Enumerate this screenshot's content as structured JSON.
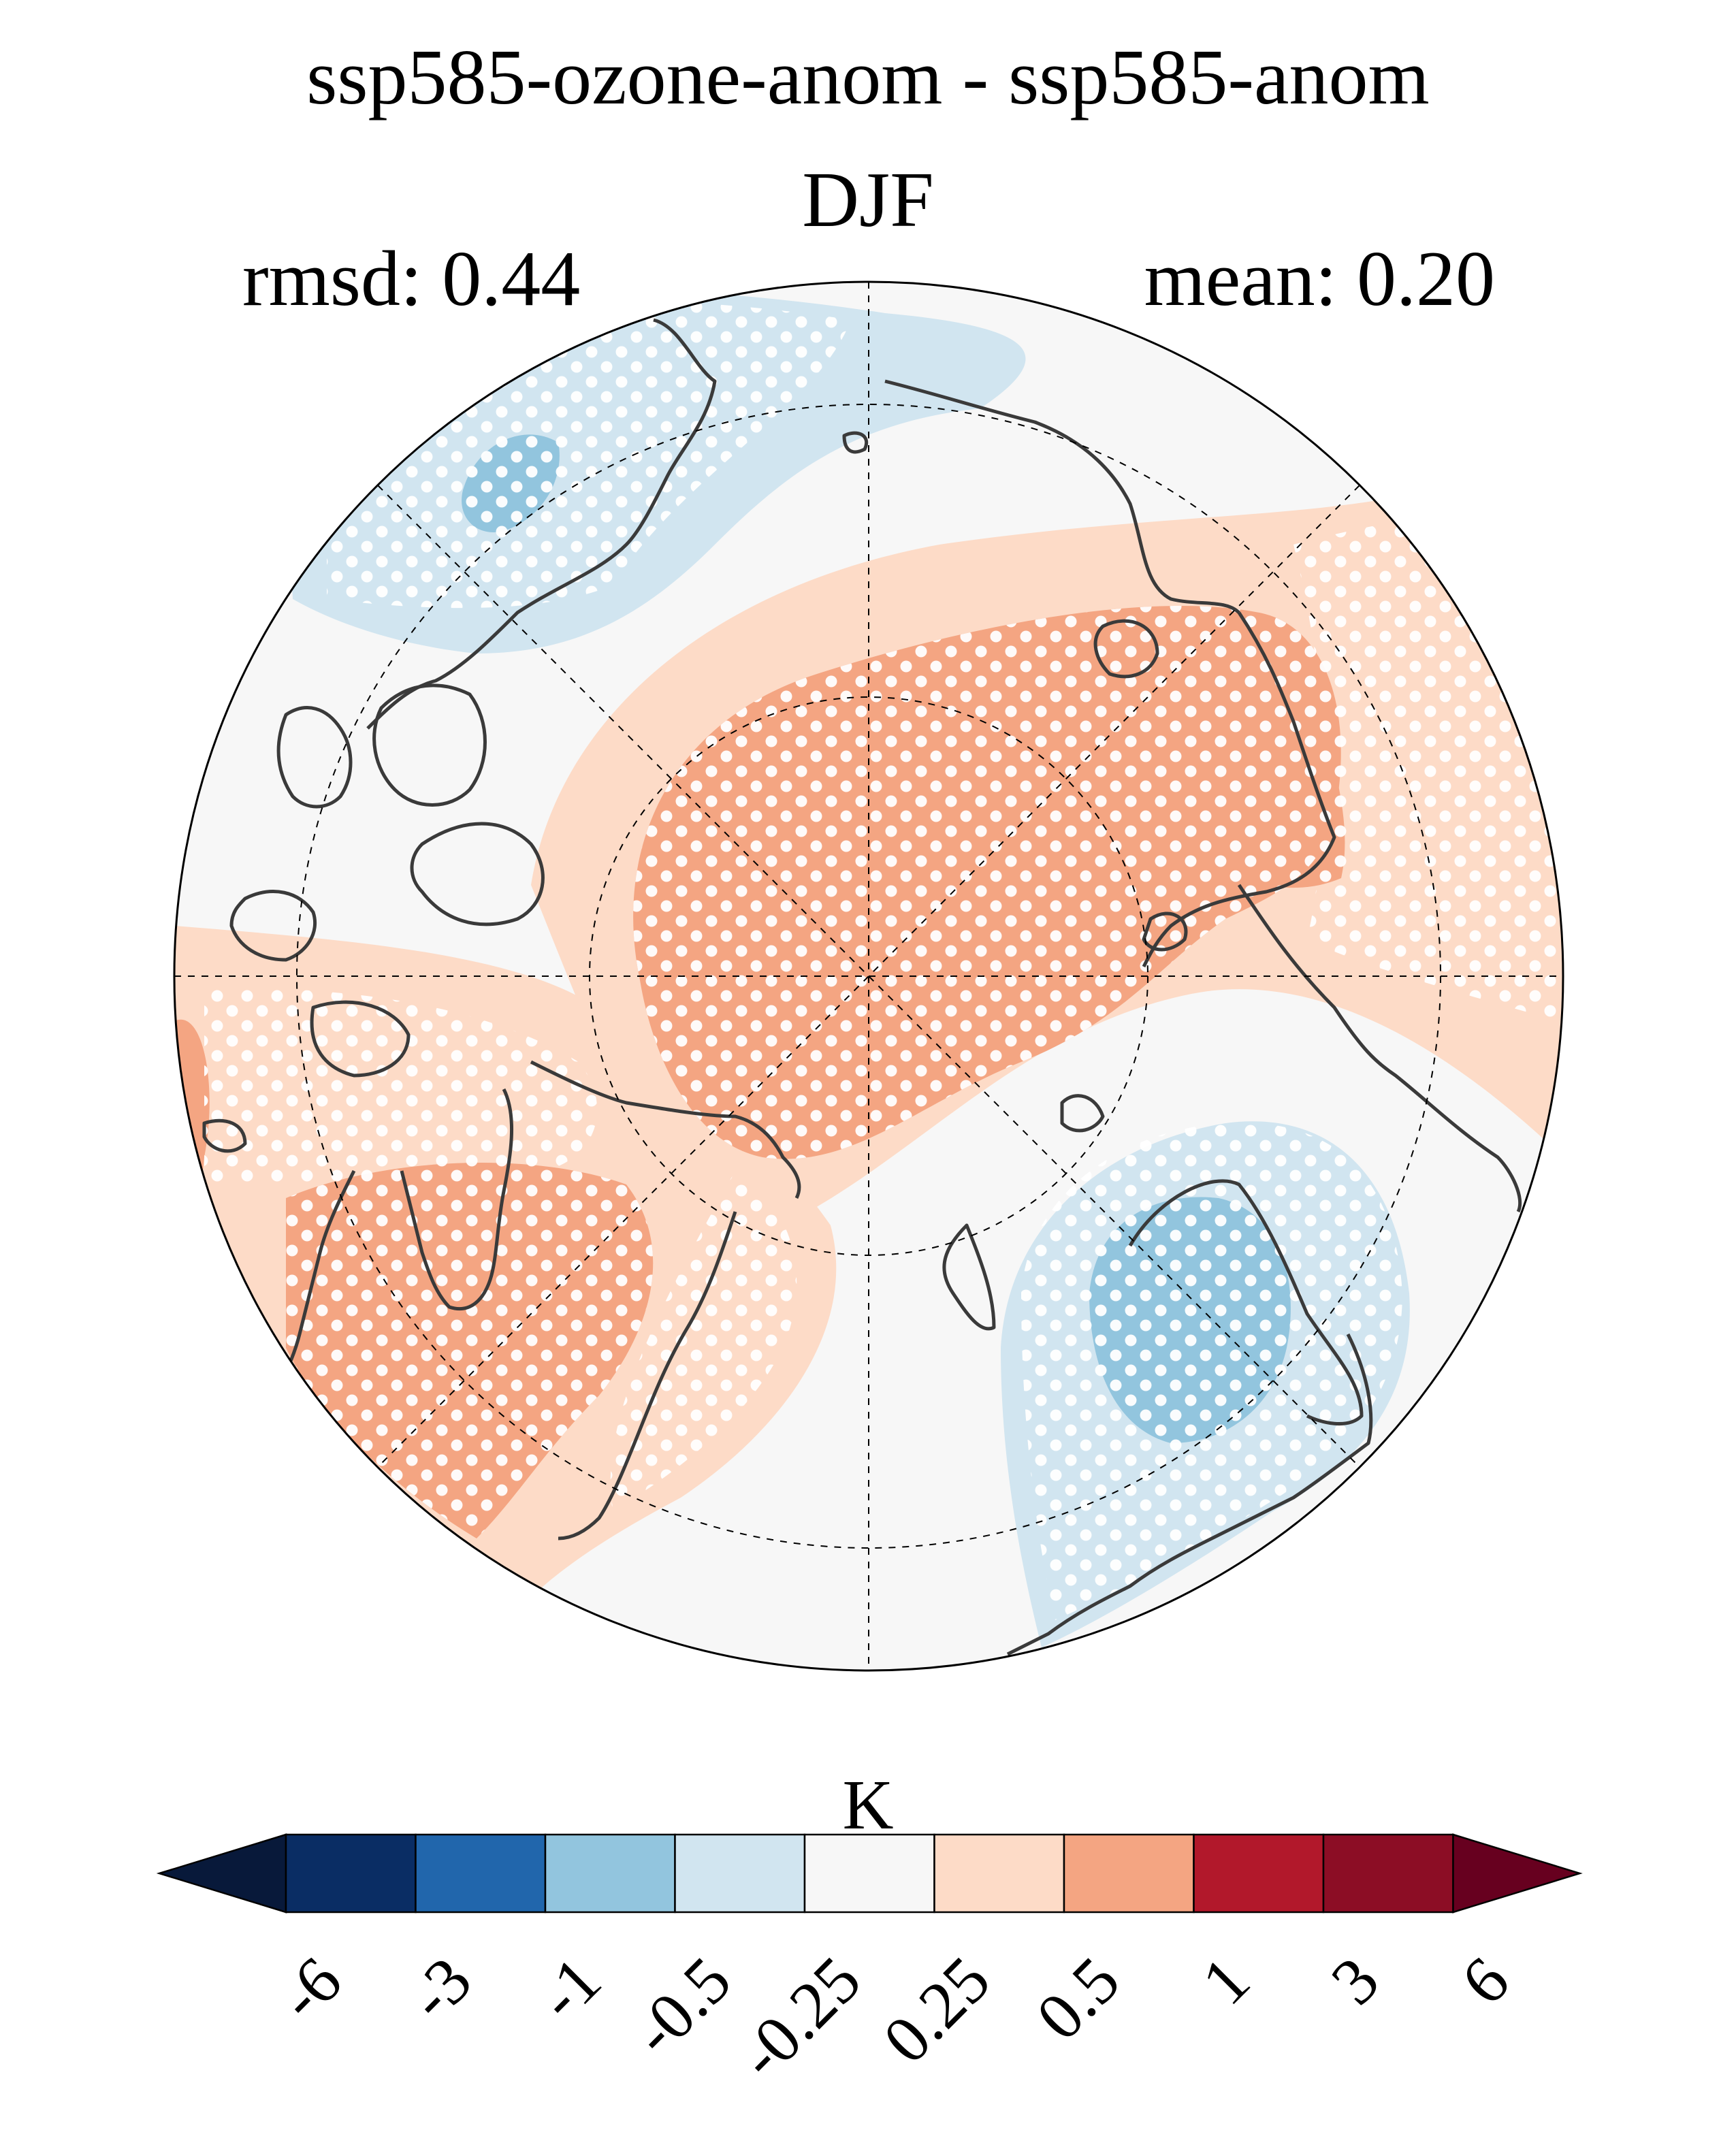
{
  "title": "ssp585-ozone-anom - ssp585-anom",
  "subtitle": "DJF",
  "stats": {
    "rmsd": "rmsd: 0.44",
    "mean": "mean: 0.20"
  },
  "map": {
    "projection": "north-polar-stereographic",
    "regions": [
      {
        "name": "arctic-ocean-center",
        "level": "0.5 to 1"
      },
      {
        "name": "eastern-siberia-russia",
        "level": "0.25 to 0.5"
      },
      {
        "name": "north-america-alaska",
        "level": "0.25 to 0.5"
      },
      {
        "name": "western-canada",
        "level": "0.5 to 1"
      },
      {
        "name": "europe-scandinavia",
        "level": "-1 to -0.25"
      },
      {
        "name": "greenland-atlantic",
        "level": "-0.25 to 0.25"
      },
      {
        "name": "east-asia-pacific",
        "level": "-1 to -0.25"
      }
    ],
    "stippling": "significance dots (white)",
    "graticule": "dashed"
  },
  "colorbar": {
    "unit": "K",
    "ticks": [
      "-6",
      "-3",
      "-1",
      "-0.5",
      "-0.25",
      "0.25",
      "0.5",
      "1",
      "3",
      "6"
    ],
    "colors": [
      "#08193a",
      "#0a2d64",
      "#2166ac",
      "#92c5de",
      "#d1e5f0",
      "#f7f7f7",
      "#fddbc7",
      "#f4a582",
      "#b2182b",
      "#8c0d25",
      "#67001f"
    ]
  }
}
